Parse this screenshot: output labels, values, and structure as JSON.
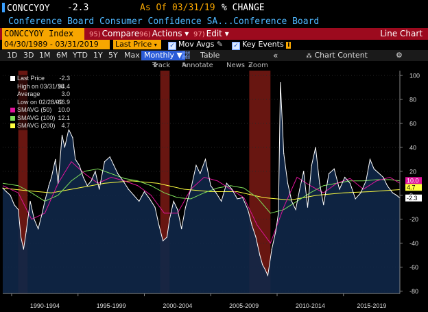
{
  "header": {
    "ticker": "CONCCYOY",
    "last_value": "-2.3",
    "as_of": "As Of 03/31/19",
    "unit": "% CHANGE",
    "name": "Conference Board Consumer Confidence SA...",
    "source": "Conference Board"
  },
  "menubar": {
    "index_field": "CONCCYOY Index",
    "compare": {
      "num": "95)",
      "label": "Compare"
    },
    "actions": {
      "num": "96)",
      "label": "Actions ▾"
    },
    "edit": {
      "num": "97)",
      "label": "Edit ▾"
    },
    "title": "Line Chart"
  },
  "toolbar": {
    "date_range": "04/30/1989 - 03/31/2019",
    "field": "Last Price",
    "mov_avgs": "Mov Avgs",
    "key_events": "Key Events"
  },
  "periods": [
    "1D",
    "3D",
    "1M",
    "6M",
    "YTD",
    "1Y",
    "5Y",
    "Max"
  ],
  "frequency": "Monthly ▼",
  "table_label": "Table",
  "collapse_glyph": "«",
  "chart_content": "Chart Content",
  "gear": "⚙",
  "tools": {
    "track": "Track",
    "annotate": "Annotate",
    "news": "News",
    "zoom": "Zoom"
  },
  "legend": [
    {
      "label": "Last Price",
      "value": "-2.3",
      "color": "#ffffff"
    },
    {
      "label": "High on 03/31/10",
      "value": "94.4",
      "color": "none"
    },
    {
      "label": "Average",
      "value": "3.0",
      "color": "none"
    },
    {
      "label": "Low on 02/28/09",
      "value": "-66.9",
      "color": "none"
    },
    {
      "label": "SMAVG (50)",
      "value": "10.0",
      "color": "#e0149c"
    },
    {
      "label": "SMAVG (100)",
      "value": "12.1",
      "color": "#7fe05a"
    },
    {
      "label": "SMAVG (200)",
      "value": "4.7",
      "color": "#ffff40"
    }
  ],
  "chart_data": {
    "type": "area",
    "x_tick_labels": [
      "1990-1994",
      "1995-1999",
      "2000-2004",
      "2005-2009",
      "2010-2014",
      "2015-2019"
    ],
    "x_range": [
      1989.33,
      2019.25
    ],
    "y_ticks": [
      100,
      80,
      60,
      40,
      20,
      0,
      -20,
      -40,
      -60,
      -80
    ],
    "ylim": [
      -82,
      104
    ],
    "recessions": [
      [
        1990.5,
        1991.2
      ],
      [
        2001.2,
        2001.9
      ],
      [
        2007.9,
        2009.5
      ]
    ],
    "series": [
      {
        "name": "Last Price",
        "color": "#ffffff",
        "fill": "#0f2748",
        "x": [
          1989.33,
          1989.6,
          1989.9,
          1990.2,
          1990.5,
          1990.7,
          1990.9,
          1991.1,
          1991.4,
          1991.7,
          1992.0,
          1992.3,
          1992.5,
          1992.8,
          1993.0,
          1993.3,
          1993.5,
          1993.8,
          1994.0,
          1994.3,
          1994.6,
          1994.8,
          1995.1,
          1995.4,
          1995.7,
          1996.0,
          1996.3,
          1996.6,
          1997.0,
          1997.4,
          1997.7,
          1998.0,
          1998.4,
          1998.8,
          1999.2,
          1999.6,
          2000.0,
          2000.4,
          2000.8,
          2001.1,
          2001.4,
          2001.7,
          2001.9,
          2002.2,
          2002.5,
          2002.8,
          2003.1,
          2003.5,
          2003.9,
          2004.2,
          2004.6,
          2005.0,
          2005.4,
          2005.8,
          2006.2,
          2006.6,
          2007.0,
          2007.4,
          2007.8,
          2008.1,
          2008.4,
          2008.7,
          2008.9,
          2009.1,
          2009.3,
          2009.6,
          2009.9,
          2010.1,
          2010.25,
          2010.5,
          2010.8,
          2011.1,
          2011.4,
          2011.7,
          2012.0,
          2012.3,
          2012.6,
          2012.9,
          2013.2,
          2013.5,
          2013.9,
          2014.3,
          2014.7,
          2015.1,
          2015.5,
          2015.9,
          2016.3,
          2016.7,
          2017.0,
          2017.3,
          2017.7,
          2018.0,
          2018.3,
          2018.7,
          2019.0,
          2019.25
        ],
        "y": [
          6,
          3,
          0,
          -8,
          -12,
          -35,
          -45,
          -30,
          -5,
          -20,
          -28,
          -15,
          -5,
          8,
          15,
          30,
          10,
          50,
          40,
          55,
          48,
          30,
          25,
          15,
          8,
          12,
          20,
          5,
          28,
          32,
          25,
          18,
          12,
          5,
          0,
          -5,
          3,
          -3,
          -10,
          -25,
          -38,
          -35,
          -20,
          -5,
          -12,
          -28,
          -10,
          5,
          25,
          18,
          30,
          8,
          2,
          -5,
          10,
          5,
          -3,
          -2,
          -12,
          -25,
          -35,
          -50,
          -58,
          -62,
          -67,
          -45,
          -30,
          -15,
          94,
          35,
          10,
          -5,
          -12,
          5,
          20,
          -10,
          25,
          40,
          10,
          -8,
          18,
          22,
          5,
          15,
          10,
          -3,
          2,
          12,
          30,
          22,
          18,
          15,
          8,
          2,
          0,
          -2.3
        ]
      },
      {
        "name": "SMAVG (50)",
        "color": "#e0149c",
        "x": [
          1989.33,
          1990.5,
          1991.5,
          1992.5,
          1993.5,
          1994.5,
          1995.5,
          1996.5,
          1997.5,
          1998.5,
          1999.5,
          2000.5,
          2001.5,
          2002.5,
          2003.5,
          2004.5,
          2005.5,
          2006.5,
          2007.5,
          2008.5,
          2009.5,
          2010.5,
          2011.5,
          2012.5,
          2013.5,
          2014.5,
          2015.5,
          2016.5,
          2017.5,
          2018.5,
          2019.25
        ],
        "y": [
          8,
          2,
          -20,
          -15,
          10,
          28,
          18,
          10,
          15,
          12,
          8,
          0,
          -15,
          -15,
          5,
          15,
          12,
          5,
          -2,
          -25,
          -40,
          -10,
          15,
          8,
          2,
          10,
          14,
          5,
          12,
          15,
          10
        ]
      },
      {
        "name": "SMAVG (100)",
        "color": "#7fe05a",
        "x": [
          1989.33,
          1990.5,
          1991.5,
          1992.5,
          1993.5,
          1994.5,
          1995.5,
          1996.5,
          1997.5,
          1998.5,
          1999.5,
          2000.5,
          2001.5,
          2002.5,
          2003.5,
          2004.5,
          2005.5,
          2006.5,
          2007.5,
          2008.5,
          2009.5,
          2010.5,
          2011.5,
          2012.5,
          2013.5,
          2014.5,
          2015.5,
          2016.5,
          2017.5,
          2018.5,
          2019.25
        ],
        "y": [
          10,
          8,
          2,
          -5,
          0,
          12,
          20,
          22,
          18,
          14,
          12,
          8,
          2,
          -2,
          -3,
          2,
          6,
          8,
          6,
          -2,
          -15,
          -12,
          -5,
          2,
          8,
          10,
          12,
          12,
          13,
          13,
          12
        ]
      },
      {
        "name": "SMAVG (200)",
        "color": "#ffff40",
        "x": [
          1989.33,
          1991.0,
          1993.0,
          1995.0,
          1997.0,
          1999.0,
          2001.0,
          2003.0,
          2005.0,
          2007.0,
          2009.0,
          2011.0,
          2013.0,
          2015.0,
          2017.0,
          2019.25
        ],
        "y": [
          6,
          4,
          2,
          6,
          10,
          12,
          10,
          5,
          3,
          3,
          -2,
          -4,
          0,
          2,
          3,
          4.7
        ]
      }
    ]
  }
}
